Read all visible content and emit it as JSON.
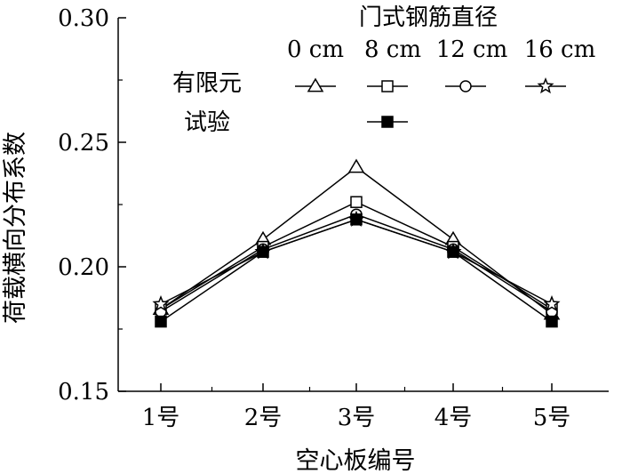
{
  "chart_data": {
    "type": "line",
    "title": "",
    "xlabel": "空心板编号",
    "ylabel": "荷载横向分布系数",
    "categories": [
      "1号",
      "2号",
      "3号",
      "4号",
      "5号"
    ],
    "ylim": [
      0.15,
      0.3
    ],
    "yticks": [
      "0.15",
      "0.20",
      "0.25",
      "0.30"
    ],
    "legend": {
      "title": "门式钢筋直径",
      "columns": [
        "0 cm",
        "8 cm",
        "12 cm",
        "16 cm"
      ],
      "row_labels": [
        "有限元",
        "试验"
      ]
    },
    "series": [
      {
        "group": "有限元",
        "column": "0 cm",
        "marker": "triangle-open",
        "values": [
          0.183,
          0.211,
          0.24,
          0.211,
          0.181
        ]
      },
      {
        "group": "有限元",
        "column": "8 cm",
        "marker": "square-open",
        "values": [
          0.183,
          0.208,
          0.226,
          0.208,
          0.183
        ]
      },
      {
        "group": "有限元",
        "column": "12 cm",
        "marker": "circle-open",
        "values": [
          0.182,
          0.207,
          0.221,
          0.207,
          0.182
        ]
      },
      {
        "group": "有限元",
        "column": "16 cm",
        "marker": "star-open",
        "values": [
          0.185,
          0.206,
          0.219,
          0.206,
          0.185
        ]
      },
      {
        "group": "试验",
        "column": "8 cm",
        "marker": "square-filled",
        "values": [
          0.178,
          0.206,
          0.219,
          0.206,
          0.178
        ]
      }
    ],
    "grid": false
  }
}
